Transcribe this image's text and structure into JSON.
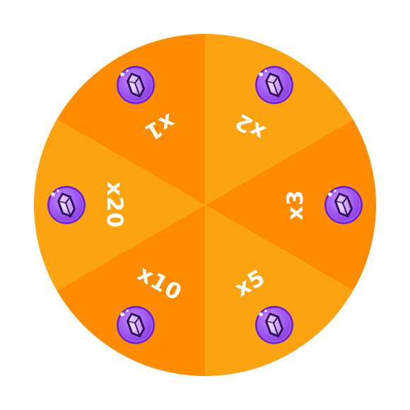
{
  "wheel": {
    "colors": {
      "dark_segment": "#FF8C00",
      "light_segment": "#FCA311",
      "label_text": "#FFFFFF",
      "coin_ring": "#7B2FE0",
      "coin_fill": "#B26BF4",
      "gem_fill": "#D8B4FE",
      "gem_outline": "#3B0A6E"
    },
    "segments": [
      {
        "label": "x1",
        "icon": "purple-gem-coin-icon"
      },
      {
        "label": "x2",
        "icon": "purple-gem-coin-icon"
      },
      {
        "label": "x3",
        "icon": "purple-gem-coin-icon"
      },
      {
        "label": "x5",
        "icon": "purple-gem-coin-icon"
      },
      {
        "label": "x10",
        "icon": "purple-gem-coin-icon"
      },
      {
        "label": "x20",
        "icon": "purple-gem-coin-icon"
      }
    ]
  }
}
